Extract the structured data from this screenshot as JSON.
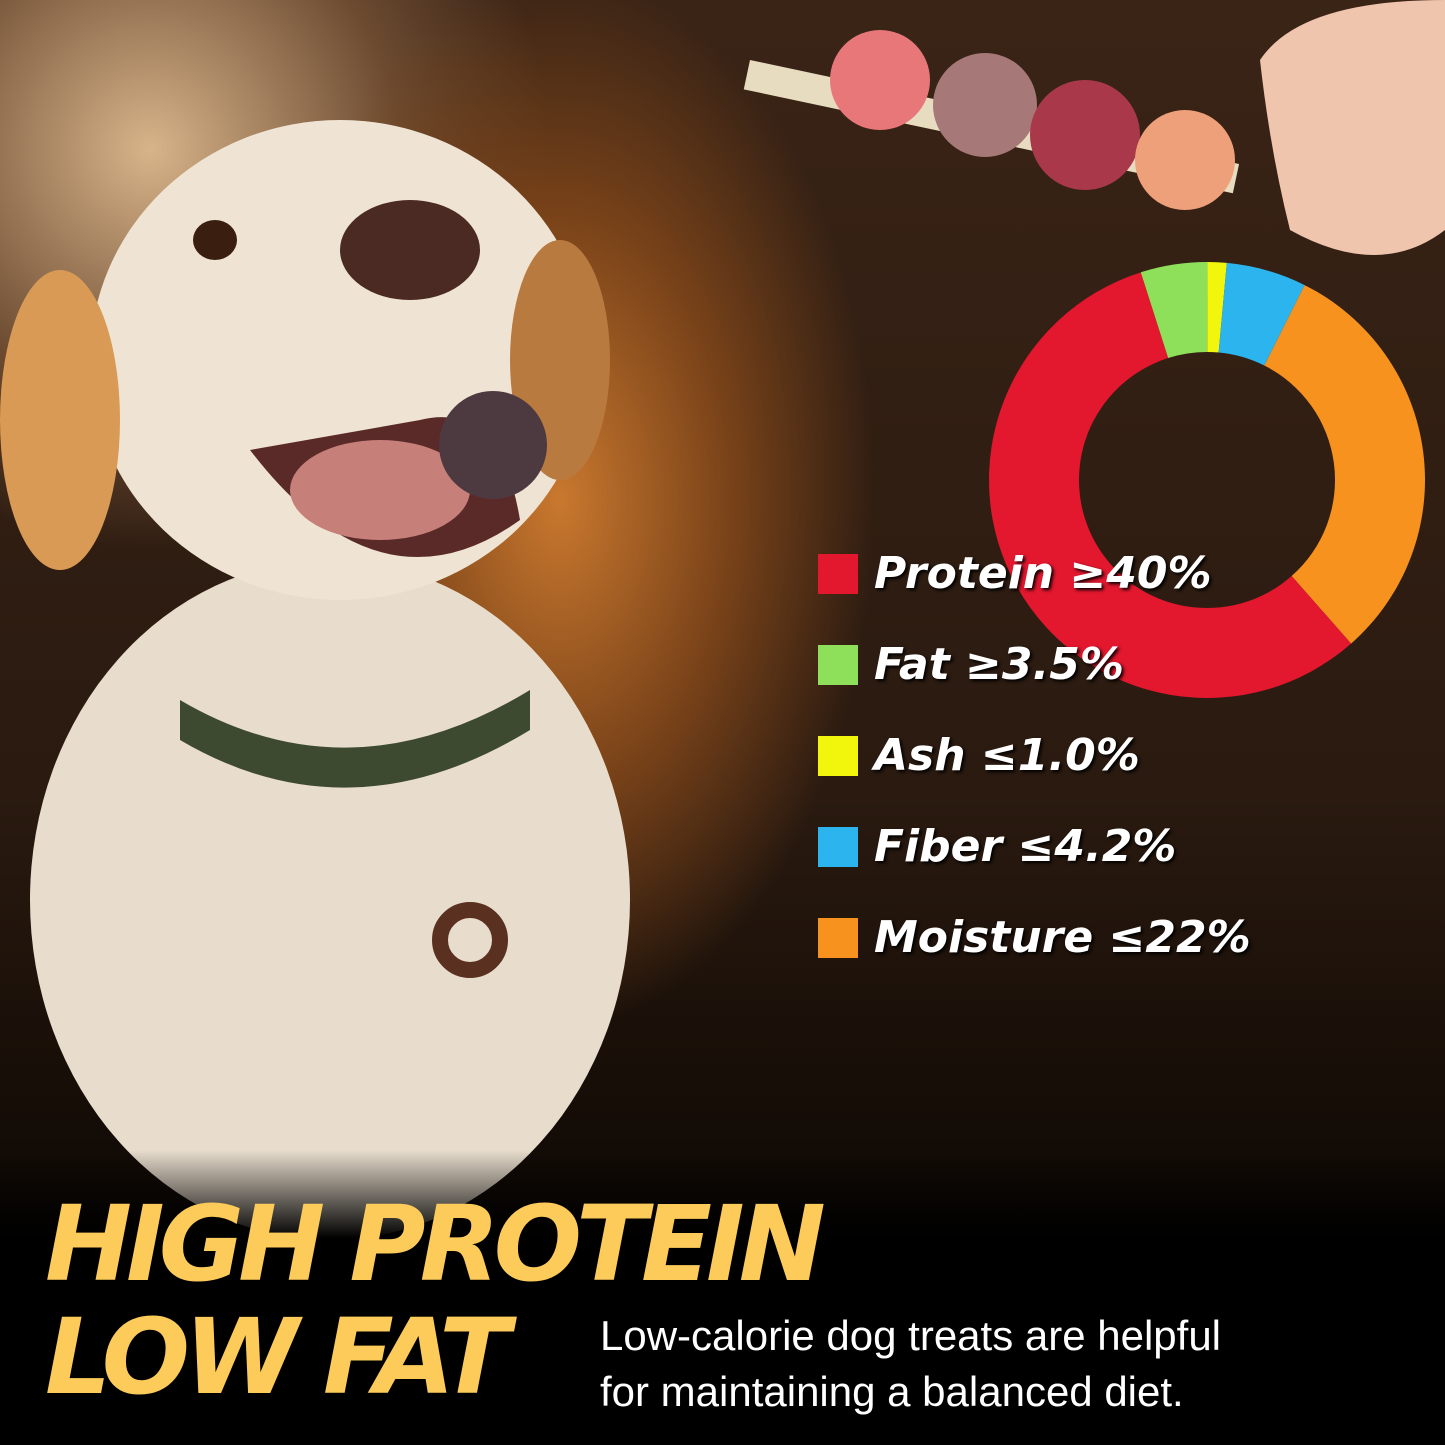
{
  "chart_data": {
    "type": "donut",
    "categories": [
      "Protein",
      "Fat",
      "Ash",
      "Fiber",
      "Moisture"
    ],
    "labels": [
      "Protein ≥40%",
      "Fat ≥3.5%",
      "Ash ≤1.0%",
      "Fiber ≤4.2%",
      "Moisture ≤22%"
    ],
    "values": [
      40,
      3.5,
      1.0,
      4.2,
      22
    ],
    "unit": "%",
    "colors": [
      "#e3172e",
      "#8ee05a",
      "#f2f50c",
      "#2cb4ee",
      "#f7921e"
    ],
    "legend_placement": "left"
  },
  "headline": {
    "line1": "HIGH PROTEIN",
    "line2": "LOW FAT"
  },
  "subtitle": {
    "line1": "Low-calorie dog treats are helpful",
    "line2": "for maintaining a balanced diet."
  }
}
